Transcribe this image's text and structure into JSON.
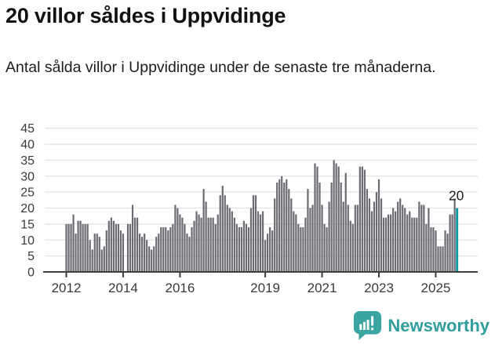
{
  "header": {
    "title": "20 villor såldes i Uppvidinge",
    "subtitle": "Antal sålda villor i Uppvidinge under de senaste tre månaderna."
  },
  "chart_data": {
    "type": "bar",
    "title": "20 villor såldes i Uppvidinge",
    "xlabel": "",
    "ylabel": "",
    "ylim": [
      0,
      45
    ],
    "ytick_step": 5,
    "yticks": [
      0,
      5,
      10,
      15,
      20,
      25,
      30,
      35,
      40,
      45
    ],
    "grid": "horizontal",
    "x_tick_labels": [
      "2012",
      "2014",
      "2016",
      "2019",
      "2021",
      "2023",
      "2025"
    ],
    "x_tick_indices": [
      0,
      24,
      48,
      84,
      108,
      132,
      156
    ],
    "values": [
      15,
      15,
      15,
      18,
      12,
      16,
      16,
      15,
      15,
      15,
      10,
      7,
      12,
      12,
      11,
      7,
      8,
      13,
      16,
      17,
      16,
      15,
      15,
      13,
      12,
      0,
      15,
      15,
      21,
      17,
      17,
      12,
      11,
      12,
      10,
      8,
      7,
      8,
      11,
      12,
      14,
      14,
      14,
      13,
      14,
      15,
      21,
      20,
      18,
      17,
      15,
      12,
      11,
      14,
      16,
      19,
      18,
      17,
      26,
      22,
      17,
      17,
      17,
      15,
      18,
      24,
      27,
      24,
      21,
      20,
      19,
      17,
      15,
      14,
      14,
      16,
      15,
      14,
      20,
      24,
      24,
      19,
      18,
      19,
      10,
      12,
      14,
      13,
      23,
      28,
      29,
      30,
      28,
      29,
      26,
      23,
      19,
      18,
      15,
      14,
      14,
      17,
      26,
      20,
      21,
      34,
      33,
      28,
      21,
      15,
      14,
      22,
      28,
      35,
      34,
      33,
      28,
      22,
      31,
      21,
      16,
      15,
      21,
      21,
      33,
      33,
      32,
      26,
      23,
      19,
      22,
      25,
      29,
      23,
      17,
      17,
      18,
      18,
      20,
      19,
      22,
      23,
      21,
      20,
      18,
      19,
      17,
      17,
      17,
      22,
      21,
      21,
      15,
      20,
      14,
      14,
      13,
      8,
      8,
      8,
      13,
      12,
      18,
      18,
      23,
      20
    ],
    "highlight_last_value": 20,
    "annotation": {
      "text": "20"
    },
    "colors": {
      "bar": "#6b6b73",
      "highlight": "#0d9aa0",
      "grid": "#e2e2e2",
      "axis": "#3d3d3d",
      "tick_label": "#3a3a3a",
      "annotation": "#1d1d1d"
    }
  },
  "footer": {
    "brand": "Newsworthy",
    "brand_color": "#2f9e9c",
    "logo_color": "#3ba5a2"
  }
}
